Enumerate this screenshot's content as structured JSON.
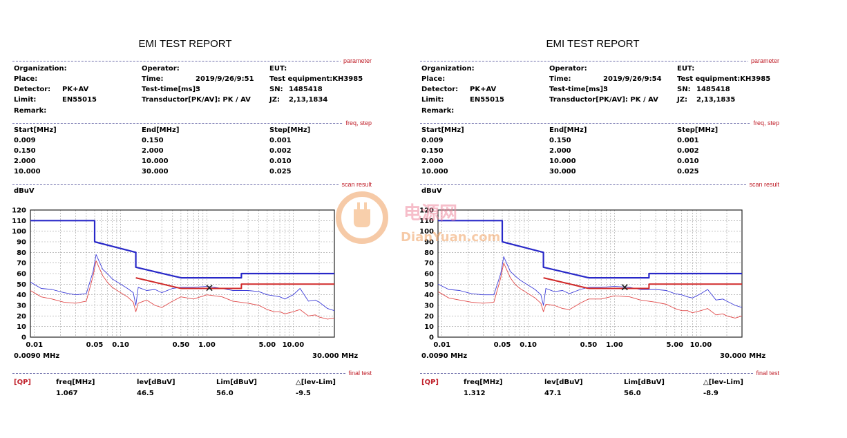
{
  "reports": [
    {
      "title": "EMI TEST REPORT",
      "section_tags": {
        "parameter": "parameter",
        "freq_step": "freq, step",
        "scan_result": "scan result",
        "final_test": "final test"
      },
      "params": {
        "organization_label": "Organization:",
        "place_label": "Place:",
        "detector_label": "Detector:",
        "detector": "PK+AV",
        "limit_label": "Limit:",
        "limit": "EN55015",
        "remark_label": "Remark:",
        "operator_label": "Operator:",
        "time_label": "Time:",
        "time": "2019/9/26/9:51",
        "test_time_label": "Test-time[ms]:",
        "test_time": "3",
        "transducer_label": "Transductor[PK/AV]: PK  /  AV",
        "eut_label": "EUT:",
        "equipment_label": "Test equipment:KH3985",
        "sn_label": "SN:",
        "sn": "1485418",
        "jz_label": "JZ:",
        "jz": "2,13,1834"
      },
      "freq_table": {
        "headers": [
          "Start[MHz]",
          "End[MHz]",
          "Step[MHz]"
        ],
        "rows": [
          [
            "0.009",
            "0.150",
            "0.001"
          ],
          [
            "0.150",
            "2.000",
            "0.002"
          ],
          [
            "2.000",
            "10.000",
            "0.010"
          ],
          [
            "10.000",
            "30.000",
            "0.025"
          ]
        ]
      },
      "y_unit": "dBuV",
      "axis_start_label": "0.0090 MHz",
      "axis_end_label": "30.000 MHz",
      "final_test": {
        "headers": [
          "[QP]",
          "freq[MHz]",
          "lev[dBuV]",
          "Lim[dBuV]",
          "△[lev-Lim]"
        ],
        "values": [
          "1.067",
          "46.5",
          "56.0",
          "-9.5"
        ]
      }
    },
    {
      "title": "EMI TEST REPORT",
      "section_tags": {
        "parameter": "parameter",
        "freq_step": "freq, step",
        "scan_result": "scan result",
        "final_test": "final test"
      },
      "params": {
        "organization_label": "Organization:",
        "place_label": "Place:",
        "detector_label": "Detector:",
        "detector": "PK+AV",
        "limit_label": "Limit:",
        "limit": "EN55015",
        "remark_label": "Remark:",
        "operator_label": "Operator:",
        "time_label": "Time:",
        "time": "2019/9/26/9:54",
        "test_time_label": "Test-time[ms]:",
        "test_time": "3",
        "transducer_label": "Transductor[PK/AV]: PK  /  AV",
        "eut_label": "EUT:",
        "equipment_label": "Test equipment:KH3985",
        "sn_label": "SN:",
        "sn": "1485418",
        "jz_label": "JZ:",
        "jz": "2,13,1835"
      },
      "freq_table": {
        "headers": [
          "Start[MHz]",
          "End[MHz]",
          "Step[MHz]"
        ],
        "rows": [
          [
            "0.009",
            "0.150",
            "0.001"
          ],
          [
            "0.150",
            "2.000",
            "0.002"
          ],
          [
            "2.000",
            "10.000",
            "0.010"
          ],
          [
            "10.000",
            "30.000",
            "0.025"
          ]
        ]
      },
      "y_unit": "dBuV",
      "axis_start_label": "0.0090 MHz",
      "axis_end_label": "30.000 MHz",
      "final_test": {
        "headers": [
          "[QP]",
          "freq[MHz]",
          "lev[dBuV]",
          "Lim[dBuV]",
          "△[lev-Lim]"
        ],
        "values": [
          "1.312",
          "47.1",
          "56.0",
          "-8.9"
        ]
      }
    }
  ],
  "watermark": {
    "brand": "电源网",
    "site": "DianYuan.com"
  },
  "chart_data": [
    {
      "type": "line",
      "x_scale": "log",
      "xlim": [
        0.009,
        30
      ],
      "ylim": [
        0,
        120
      ],
      "yticks": [
        0,
        10,
        20,
        30,
        40,
        50,
        60,
        70,
        80,
        90,
        100,
        110,
        120
      ],
      "xticks": [
        0.01,
        0.05,
        0.1,
        0.5,
        1,
        5,
        10
      ],
      "xtick_labels": [
        "0.01",
        "0.05",
        "0.10",
        "0.50",
        "1.00",
        "5.00",
        "10.00"
      ],
      "grid": true,
      "colors": {
        "limit_qp": "#2828c8",
        "limit_av": "#d02828",
        "pk": "#3c3cd8",
        "av": "#e04848"
      },
      "series": [
        {
          "id": "limit_qp",
          "x": [
            0.009,
            0.05,
            0.05,
            0.15,
            0.15,
            0.5,
            2.51,
            2.51,
            30
          ],
          "y": [
            110,
            110,
            90,
            80,
            66,
            56,
            56,
            60,
            60
          ]
        },
        {
          "id": "limit_av",
          "x": [
            0.15,
            0.5,
            2.51,
            2.51,
            30
          ],
          "y": [
            56,
            46,
            46,
            50,
            50
          ]
        },
        {
          "id": "pk",
          "x": [
            0.009,
            0.012,
            0.016,
            0.022,
            0.03,
            0.04,
            0.048,
            0.052,
            0.056,
            0.062,
            0.07,
            0.08,
            0.1,
            0.12,
            0.14,
            0.15,
            0.16,
            0.2,
            0.25,
            0.3,
            0.4,
            0.5,
            0.7,
            1.0,
            1.5,
            2.0,
            3.0,
            4.0,
            5.0,
            6.0,
            7.0,
            8.0,
            10.0,
            12.0,
            15.0,
            18.0,
            20.0,
            25.0,
            30.0
          ],
          "y": [
            52,
            46,
            45,
            42,
            40,
            41,
            62,
            78,
            72,
            64,
            60,
            55,
            50,
            46,
            42,
            30,
            47,
            44,
            45,
            42,
            46,
            47,
            47,
            48,
            46,
            44,
            44,
            43,
            40,
            39,
            38,
            36,
            40,
            46,
            34,
            35,
            33,
            27,
            25
          ]
        },
        {
          "id": "av",
          "x": [
            0.009,
            0.012,
            0.016,
            0.022,
            0.03,
            0.04,
            0.048,
            0.052,
            0.056,
            0.062,
            0.07,
            0.08,
            0.1,
            0.12,
            0.14,
            0.15,
            0.16,
            0.2,
            0.25,
            0.3,
            0.4,
            0.5,
            0.7,
            1.0,
            1.5,
            2.0,
            3.0,
            4.0,
            5.0,
            6.0,
            7.0,
            8.0,
            10.0,
            12.0,
            15.0,
            18.0,
            20.0,
            25.0,
            30.0
          ],
          "y": [
            44,
            38,
            36,
            33,
            32,
            34,
            58,
            72,
            66,
            58,
            52,
            47,
            42,
            38,
            33,
            24,
            32,
            35,
            30,
            28,
            34,
            38,
            36,
            40,
            38,
            34,
            32,
            30,
            26,
            24,
            24,
            22,
            24,
            26,
            20,
            21,
            19,
            17,
            18
          ]
        }
      ],
      "markers": [
        {
          "x": 1.067,
          "y": 46.5,
          "symbol": "x"
        }
      ]
    },
    {
      "type": "line",
      "x_scale": "log",
      "xlim": [
        0.009,
        30
      ],
      "ylim": [
        0,
        120
      ],
      "yticks": [
        0,
        10,
        20,
        30,
        40,
        50,
        60,
        70,
        80,
        90,
        100,
        110,
        120
      ],
      "xticks": [
        0.01,
        0.05,
        0.1,
        0.5,
        1,
        5,
        10
      ],
      "xtick_labels": [
        "0.01",
        "0.05",
        "0.10",
        "0.50",
        "1.00",
        "5.00",
        "10.00"
      ],
      "grid": true,
      "colors": {
        "limit_qp": "#2828c8",
        "limit_av": "#d02828",
        "pk": "#3c3cd8",
        "av": "#e04848"
      },
      "series": [
        {
          "id": "limit_qp",
          "x": [
            0.009,
            0.05,
            0.05,
            0.15,
            0.15,
            0.5,
            2.51,
            2.51,
            30
          ],
          "y": [
            110,
            110,
            90,
            80,
            66,
            56,
            56,
            60,
            60
          ]
        },
        {
          "id": "limit_av",
          "x": [
            0.15,
            0.5,
            2.51,
            2.51,
            30
          ],
          "y": [
            56,
            46,
            46,
            50,
            50
          ]
        },
        {
          "id": "pk",
          "x": [
            0.009,
            0.012,
            0.016,
            0.022,
            0.03,
            0.04,
            0.048,
            0.052,
            0.056,
            0.062,
            0.07,
            0.08,
            0.1,
            0.12,
            0.14,
            0.15,
            0.16,
            0.2,
            0.25,
            0.3,
            0.4,
            0.5,
            0.7,
            1.0,
            1.5,
            2.0,
            3.0,
            4.0,
            5.0,
            6.0,
            7.0,
            8.0,
            10.0,
            12.0,
            15.0,
            18.0,
            20.0,
            25.0,
            30.0
          ],
          "y": [
            50,
            45,
            44,
            41,
            40,
            40,
            60,
            76,
            70,
            62,
            58,
            54,
            49,
            45,
            40,
            30,
            46,
            43,
            44,
            41,
            45,
            47,
            47,
            48,
            47,
            45,
            45,
            44,
            41,
            40,
            38,
            37,
            41,
            45,
            35,
            36,
            34,
            30,
            28
          ]
        },
        {
          "id": "av",
          "x": [
            0.009,
            0.012,
            0.016,
            0.022,
            0.03,
            0.04,
            0.048,
            0.052,
            0.056,
            0.062,
            0.07,
            0.08,
            0.1,
            0.12,
            0.14,
            0.15,
            0.16,
            0.2,
            0.25,
            0.3,
            0.4,
            0.5,
            0.7,
            1.0,
            1.5,
            2.0,
            3.0,
            4.0,
            5.0,
            6.0,
            7.0,
            8.0,
            10.0,
            12.0,
            15.0,
            18.0,
            20.0,
            25.0,
            30.0
          ],
          "y": [
            43,
            37,
            35,
            33,
            32,
            33,
            56,
            70,
            64,
            56,
            50,
            46,
            41,
            37,
            32,
            24,
            31,
            30,
            27,
            26,
            32,
            36,
            36,
            39,
            38,
            35,
            33,
            31,
            27,
            25,
            25,
            23,
            25,
            27,
            21,
            22,
            20,
            18,
            20
          ]
        }
      ],
      "markers": [
        {
          "x": 1.312,
          "y": 47.1,
          "symbol": "x"
        }
      ]
    }
  ]
}
